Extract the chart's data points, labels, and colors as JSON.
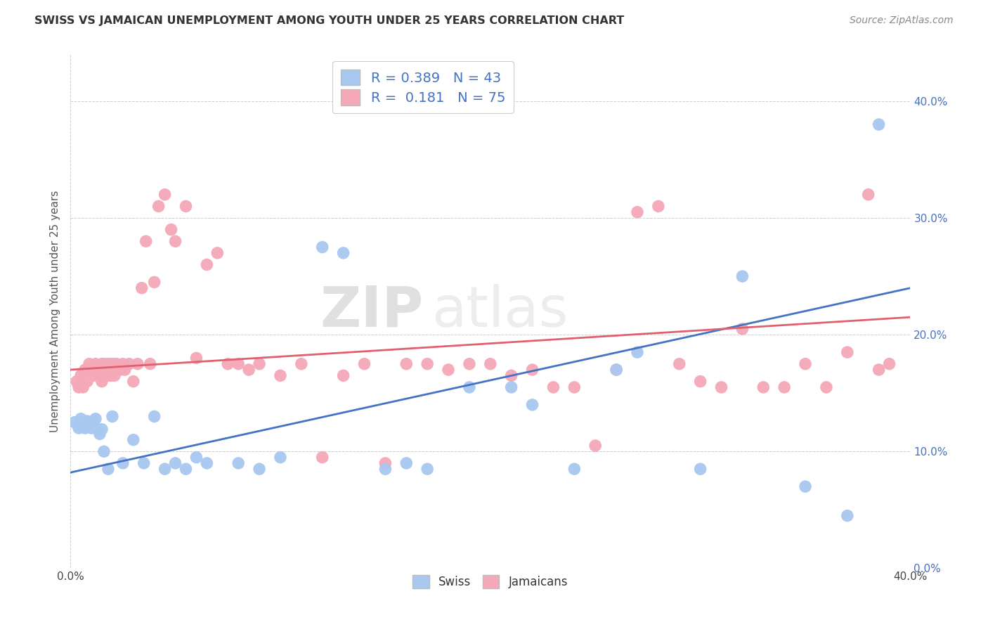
{
  "title": "SWISS VS JAMAICAN UNEMPLOYMENT AMONG YOUTH UNDER 25 YEARS CORRELATION CHART",
  "source": "Source: ZipAtlas.com",
  "ylabel": "Unemployment Among Youth under 25 years",
  "legend_swiss": "Swiss",
  "legend_jamaicans": "Jamaicans",
  "swiss_R": "0.389",
  "swiss_N": "43",
  "jamaican_R": "0.181",
  "jamaican_N": "75",
  "swiss_color": "#a8c8f0",
  "jamaican_color": "#f4a8b8",
  "swiss_line_color": "#4472c4",
  "jamaican_line_color": "#e06070",
  "background_color": "#ffffff",
  "grid_color": "#cccccc",
  "watermark_zip": "ZIP",
  "watermark_atlas": "atlas",
  "xlim": [
    0.0,
    0.4
  ],
  "ylim": [
    0.0,
    0.44
  ],
  "swiss_x": [
    0.002,
    0.004,
    0.005,
    0.006,
    0.007,
    0.008,
    0.009,
    0.01,
    0.011,
    0.012,
    0.014,
    0.015,
    0.016,
    0.018,
    0.02,
    0.025,
    0.03,
    0.035,
    0.04,
    0.045,
    0.05,
    0.055,
    0.06,
    0.065,
    0.08,
    0.09,
    0.1,
    0.12,
    0.13,
    0.15,
    0.16,
    0.17,
    0.19,
    0.21,
    0.22,
    0.24,
    0.26,
    0.27,
    0.3,
    0.32,
    0.35,
    0.37,
    0.385
  ],
  "swiss_y": [
    0.125,
    0.12,
    0.128,
    0.122,
    0.12,
    0.126,
    0.124,
    0.12,
    0.126,
    0.128,
    0.115,
    0.119,
    0.1,
    0.085,
    0.13,
    0.09,
    0.11,
    0.09,
    0.13,
    0.085,
    0.09,
    0.085,
    0.095,
    0.09,
    0.09,
    0.085,
    0.095,
    0.275,
    0.27,
    0.085,
    0.09,
    0.085,
    0.155,
    0.155,
    0.14,
    0.085,
    0.17,
    0.185,
    0.085,
    0.25,
    0.07,
    0.045,
    0.38
  ],
  "jamaican_x": [
    0.003,
    0.004,
    0.005,
    0.006,
    0.007,
    0.008,
    0.009,
    0.01,
    0.011,
    0.012,
    0.013,
    0.014,
    0.015,
    0.015,
    0.016,
    0.017,
    0.018,
    0.019,
    0.02,
    0.021,
    0.022,
    0.023,
    0.024,
    0.025,
    0.026,
    0.028,
    0.03,
    0.032,
    0.034,
    0.036,
    0.038,
    0.04,
    0.042,
    0.045,
    0.048,
    0.05,
    0.055,
    0.06,
    0.065,
    0.07,
    0.075,
    0.08,
    0.085,
    0.09,
    0.1,
    0.11,
    0.12,
    0.13,
    0.14,
    0.15,
    0.16,
    0.17,
    0.18,
    0.19,
    0.2,
    0.21,
    0.22,
    0.23,
    0.24,
    0.25,
    0.26,
    0.27,
    0.28,
    0.29,
    0.3,
    0.31,
    0.32,
    0.33,
    0.34,
    0.35,
    0.36,
    0.37,
    0.38,
    0.385,
    0.39
  ],
  "jamaican_y": [
    0.16,
    0.155,
    0.165,
    0.155,
    0.17,
    0.16,
    0.175,
    0.17,
    0.165,
    0.175,
    0.17,
    0.165,
    0.175,
    0.16,
    0.175,
    0.165,
    0.175,
    0.165,
    0.175,
    0.165,
    0.175,
    0.17,
    0.17,
    0.175,
    0.17,
    0.175,
    0.16,
    0.175,
    0.24,
    0.28,
    0.175,
    0.245,
    0.31,
    0.32,
    0.29,
    0.28,
    0.31,
    0.18,
    0.26,
    0.27,
    0.175,
    0.175,
    0.17,
    0.175,
    0.165,
    0.175,
    0.095,
    0.165,
    0.175,
    0.09,
    0.175,
    0.175,
    0.17,
    0.175,
    0.175,
    0.165,
    0.17,
    0.155,
    0.155,
    0.105,
    0.17,
    0.305,
    0.31,
    0.175,
    0.16,
    0.155,
    0.205,
    0.155,
    0.155,
    0.175,
    0.155,
    0.185,
    0.32,
    0.17,
    0.175
  ]
}
